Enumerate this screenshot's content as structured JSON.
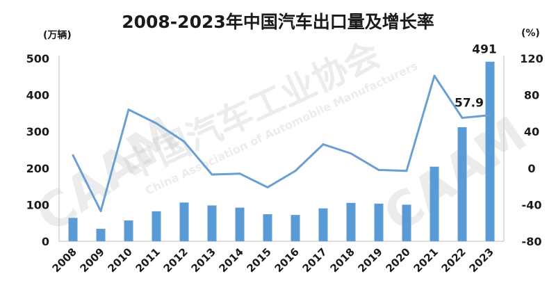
{
  "title": "2008-2023年中国汽车出口量及增长率",
  "watermark": {
    "logo": "CAAM",
    "cn": "中国汽车工业协会",
    "en": "China Association of Automobile Manufacturers"
  },
  "chart_data": {
    "type": "bar",
    "categories": [
      "2008",
      "2009",
      "2010",
      "2011",
      "2012",
      "2013",
      "2014",
      "2015",
      "2016",
      "2017",
      "2018",
      "2019",
      "2020",
      "2021",
      "2022",
      "2023"
    ],
    "left_unit": "(万辆)",
    "right_unit": "(%)",
    "ylim": [
      0,
      500
    ],
    "yticks": [
      0,
      100,
      200,
      300,
      400,
      500
    ],
    "y2lim": [
      -80,
      120
    ],
    "y2ticks": [
      -80,
      -40,
      0,
      40,
      80,
      120
    ],
    "series": [
      {
        "type": "bar",
        "axis": "left",
        "color": "#5b9bd5",
        "values": [
          64,
          34,
          57,
          82,
          106,
          98,
          92,
          74,
          72,
          90,
          105,
          103,
          100,
          204,
          312,
          491
        ]
      },
      {
        "type": "line",
        "axis": "right",
        "color": "#6a9fd2",
        "values": [
          14,
          -47,
          64,
          49,
          29,
          -7,
          -6,
          -21,
          -3,
          26,
          16,
          -2,
          -3,
          101,
          55,
          57.9
        ]
      }
    ],
    "data_labels": [
      {
        "series": 0,
        "index": 15,
        "text": "491"
      },
      {
        "series": 1,
        "index": 15,
        "text": "57.9"
      }
    ]
  }
}
